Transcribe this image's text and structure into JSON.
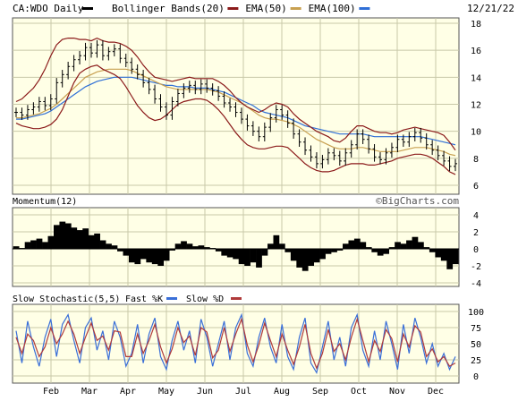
{
  "header": {
    "symbol": "CA:WDO Daily",
    "date": "12/21/22",
    "legend": [
      {
        "label": "Bollinger Bands(20)",
        "color": "#8b1a1a"
      },
      {
        "label": "EMA(50)",
        "color": "#c8a050"
      },
      {
        "label": "EMA(100)",
        "color": "#2f6fd6"
      }
    ],
    "price_color": "#000000"
  },
  "watermark": "©BigCharts.com",
  "colors": {
    "panel_bg": "#ffffe6",
    "grid": "#c8c8a8",
    "frame": "#555555",
    "stoch_k": "#3a6fd8",
    "stoch_d": "#b03a3a"
  },
  "x_labels": [
    "Feb",
    "Mar",
    "Apr",
    "May",
    "Jun",
    "Jul",
    "Aug",
    "Sep",
    "Oct",
    "Nov",
    "Dec"
  ],
  "chart_data": [
    {
      "type": "ohlc",
      "panel": "price",
      "title": "CA:WDO Daily",
      "ylim": [
        6,
        18
      ],
      "y_ticks": [
        6,
        8,
        10,
        12,
        14,
        16,
        18
      ],
      "series": [
        {
          "name": "CA:WDO Daily",
          "type": "ohlc-close",
          "values": [
            11.4,
            11.2,
            11.6,
            11.8,
            12.2,
            11.9,
            12.4,
            13.6,
            14.2,
            14.8,
            15.3,
            15.6,
            16.2,
            15.8,
            16.4,
            15.6,
            15.9,
            16.1,
            15.4,
            15.1,
            14.6,
            14.2,
            13.6,
            13.1,
            12.4,
            11.8,
            11.2,
            12.2,
            12.8,
            13.2,
            13.4,
            13.1,
            13.5,
            13.2,
            13.0,
            12.6,
            12.1,
            11.8,
            11.4,
            10.9,
            10.4,
            10.0,
            9.6,
            10.3,
            11.0,
            11.6,
            11.2,
            10.6,
            9.8,
            9.2,
            8.6,
            8.1,
            7.6,
            7.9,
            8.4,
            8.2,
            7.8,
            8.4,
            9.0,
            9.8,
            9.4,
            8.7,
            8.1,
            7.9,
            8.4,
            8.8,
            9.4,
            9.2,
            9.6,
            9.9,
            9.5,
            9.0,
            8.6,
            8.2,
            7.8,
            7.4,
            7.6
          ]
        },
        {
          "name": "Bollinger Bands(20) Upper",
          "type": "line",
          "values": [
            12.2,
            12.4,
            12.8,
            13.2,
            13.8,
            14.6,
            15.6,
            16.4,
            16.8,
            16.9,
            16.9,
            16.8,
            16.8,
            16.7,
            16.9,
            16.7,
            16.6,
            16.6,
            16.5,
            16.3,
            16.0,
            15.5,
            14.9,
            14.4,
            14.0,
            13.9,
            13.8,
            13.7,
            13.8,
            13.9,
            14.0,
            13.9,
            13.9,
            13.9,
            13.9,
            13.7,
            13.4,
            13.0,
            12.5,
            12.1,
            11.8,
            11.6,
            11.4,
            11.6,
            11.9,
            12.1,
            12.0,
            11.8,
            11.3,
            10.9,
            10.6,
            10.3,
            10.0,
            9.8,
            9.6,
            9.3,
            9.2,
            9.5,
            10.0,
            10.4,
            10.4,
            10.2,
            10.0,
            9.9,
            9.9,
            9.8,
            9.9,
            10.1,
            10.2,
            10.3,
            10.2,
            10.1,
            10.0,
            9.9,
            9.7,
            9.2,
            8.6
          ]
        },
        {
          "name": "Bollinger Bands(20) Lower",
          "type": "line",
          "values": [
            10.6,
            10.4,
            10.3,
            10.2,
            10.2,
            10.3,
            10.5,
            10.9,
            11.6,
            12.6,
            13.6,
            14.3,
            14.6,
            14.8,
            14.9,
            14.6,
            14.4,
            14.2,
            13.9,
            13.3,
            12.6,
            11.9,
            11.4,
            11.0,
            10.8,
            10.9,
            11.2,
            11.6,
            12.0,
            12.2,
            12.3,
            12.4,
            12.4,
            12.3,
            12.0,
            11.6,
            11.1,
            10.5,
            9.9,
            9.4,
            9.0,
            8.8,
            8.7,
            8.7,
            8.8,
            8.9,
            8.9,
            8.8,
            8.4,
            8.0,
            7.6,
            7.3,
            7.1,
            7.0,
            7.0,
            7.1,
            7.3,
            7.5,
            7.6,
            7.6,
            7.6,
            7.5,
            7.5,
            7.6,
            7.7,
            7.8,
            8.0,
            8.1,
            8.2,
            8.3,
            8.3,
            8.2,
            8.0,
            7.7,
            7.4,
            7.0,
            6.8
          ]
        },
        {
          "name": "EMA(50)",
          "type": "line",
          "values": [
            11.0,
            11.0,
            11.1,
            11.2,
            11.3,
            11.5,
            11.7,
            12.0,
            12.4,
            12.8,
            13.2,
            13.6,
            14.0,
            14.2,
            14.4,
            14.5,
            14.6,
            14.6,
            14.6,
            14.6,
            14.5,
            14.3,
            14.1,
            13.9,
            13.7,
            13.5,
            13.3,
            13.2,
            13.1,
            13.1,
            13.1,
            13.1,
            13.1,
            13.1,
            13.0,
            12.9,
            12.7,
            12.5,
            12.3,
            12.1,
            11.8,
            11.5,
            11.2,
            11.0,
            10.9,
            10.9,
            10.8,
            10.7,
            10.5,
            10.3,
            10.0,
            9.7,
            9.4,
            9.2,
            9.0,
            8.8,
            8.7,
            8.7,
            8.7,
            8.8,
            8.8,
            8.7,
            8.6,
            8.5,
            8.5,
            8.5,
            8.5,
            8.6,
            8.7,
            8.8,
            8.8,
            8.8,
            8.7,
            8.6,
            8.5,
            8.3,
            8.2
          ]
        },
        {
          "name": "EMA(100)",
          "type": "line",
          "values": [
            10.9,
            10.9,
            11.0,
            11.1,
            11.2,
            11.3,
            11.5,
            11.8,
            12.1,
            12.4,
            12.7,
            13.0,
            13.3,
            13.5,
            13.7,
            13.8,
            13.9,
            14.0,
            14.0,
            14.0,
            14.0,
            13.9,
            13.8,
            13.7,
            13.6,
            13.5,
            13.4,
            13.4,
            13.3,
            13.3,
            13.3,
            13.2,
            13.2,
            13.2,
            13.1,
            13.0,
            12.9,
            12.7,
            12.5,
            12.3,
            12.1,
            11.9,
            11.6,
            11.4,
            11.3,
            11.2,
            11.1,
            11.0,
            10.8,
            10.6,
            10.4,
            10.3,
            10.2,
            10.1,
            10.0,
            9.9,
            9.8,
            9.8,
            9.8,
            9.8,
            9.8,
            9.7,
            9.6,
            9.6,
            9.6,
            9.6,
            9.6,
            9.6,
            9.6,
            9.6,
            9.6,
            9.5,
            9.4,
            9.3,
            9.2,
            9.1,
            9.0
          ]
        }
      ]
    },
    {
      "type": "bar",
      "panel": "momentum",
      "title": "Momentum(12)",
      "ylim": [
        -4,
        4
      ],
      "y_ticks": [
        -4,
        -2,
        0,
        2,
        4
      ],
      "series": [
        {
          "name": "Momentum(12)",
          "values": [
            0.3,
            0.1,
            0.8,
            1.0,
            1.2,
            0.8,
            1.5,
            2.8,
            3.2,
            3.0,
            2.5,
            2.2,
            2.4,
            1.6,
            1.8,
            1.0,
            0.6,
            0.4,
            -0.3,
            -0.8,
            -1.6,
            -1.8,
            -1.2,
            -1.6,
            -1.8,
            -2.0,
            -1.4,
            -0.2,
            0.6,
            0.9,
            0.6,
            0.3,
            0.4,
            0.2,
            0.1,
            -0.3,
            -0.8,
            -1.0,
            -1.2,
            -1.8,
            -2.0,
            -1.6,
            -2.2,
            -0.8,
            0.6,
            1.6,
            0.6,
            -0.4,
            -1.4,
            -2.2,
            -2.6,
            -2.0,
            -1.6,
            -1.2,
            -0.6,
            -0.4,
            -0.2,
            0.6,
            1.0,
            1.2,
            0.8,
            0.2,
            -0.4,
            -0.8,
            -0.6,
            0.2,
            0.8,
            0.6,
            1.0,
            1.4,
            0.8,
            0.2,
            -0.4,
            -1.0,
            -1.4,
            -2.4,
            -1.8
          ]
        }
      ]
    },
    {
      "type": "line",
      "panel": "stochastic",
      "title": "Slow Stochastic(5,5)",
      "ylim": [
        0,
        100
      ],
      "y_ticks": [
        0,
        25,
        50,
        75,
        100
      ],
      "legend": [
        "Fast %K",
        "Slow %D"
      ],
      "series": [
        {
          "name": "Fast %K",
          "values": [
            70,
            20,
            85,
            45,
            15,
            60,
            88,
            30,
            80,
            95,
            55,
            20,
            75,
            90,
            40,
            70,
            25,
            85,
            60,
            15,
            35,
            80,
            20,
            65,
            90,
            30,
            10,
            55,
            85,
            40,
            70,
            20,
            88,
            60,
            15,
            50,
            85,
            25,
            75,
            95,
            35,
            15,
            60,
            90,
            45,
            20,
            80,
            30,
            10,
            60,
            90,
            20,
            5,
            45,
            85,
            25,
            60,
            15,
            75,
            95,
            40,
            15,
            70,
            25,
            85,
            50,
            10,
            80,
            35,
            90,
            60,
            20,
            50,
            15,
            35,
            10,
            30
          ]
        },
        {
          "name": "Slow %D",
          "values": [
            60,
            35,
            65,
            55,
            30,
            45,
            75,
            50,
            65,
            85,
            65,
            35,
            60,
            82,
            55,
            62,
            40,
            70,
            68,
            30,
            30,
            65,
            35,
            55,
            80,
            45,
            20,
            42,
            75,
            52,
            62,
            32,
            75,
            68,
            28,
            40,
            75,
            38,
            65,
            88,
            48,
            22,
            48,
            82,
            55,
            30,
            65,
            40,
            18,
            45,
            80,
            35,
            12,
            35,
            72,
            38,
            50,
            25,
            60,
            88,
            55,
            22,
            55,
            38,
            72,
            58,
            22,
            65,
            45,
            78,
            68,
            30,
            42,
            22,
            30,
            15,
            20
          ]
        }
      ]
    }
  ]
}
